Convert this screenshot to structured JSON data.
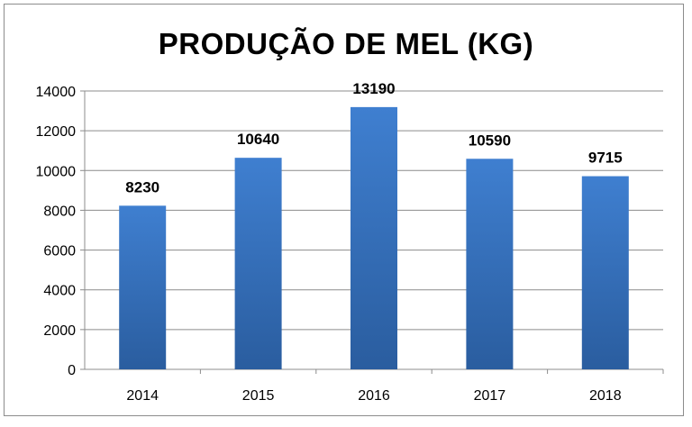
{
  "chart_data": {
    "type": "bar",
    "title": "PRODUÇÃO DE MEL (KG)",
    "xlabel": "",
    "ylabel": "",
    "categories": [
      "2014",
      "2015",
      "2016",
      "2017",
      "2018"
    ],
    "values": [
      8230,
      10640,
      13190,
      10590,
      9715
    ],
    "data_labels": [
      "8230",
      "10640",
      "13190",
      "10590",
      "9715"
    ],
    "ylim": [
      0,
      14000
    ],
    "yticks": [
      0,
      2000,
      4000,
      6000,
      8000,
      10000,
      12000,
      14000
    ],
    "grid": true,
    "legend": "none",
    "colors": {
      "bar_top": "#3f7fd0",
      "bar_bottom": "#2a5d9f",
      "grid": "#8c8c8c",
      "frame": "#8c8c8c"
    }
  }
}
